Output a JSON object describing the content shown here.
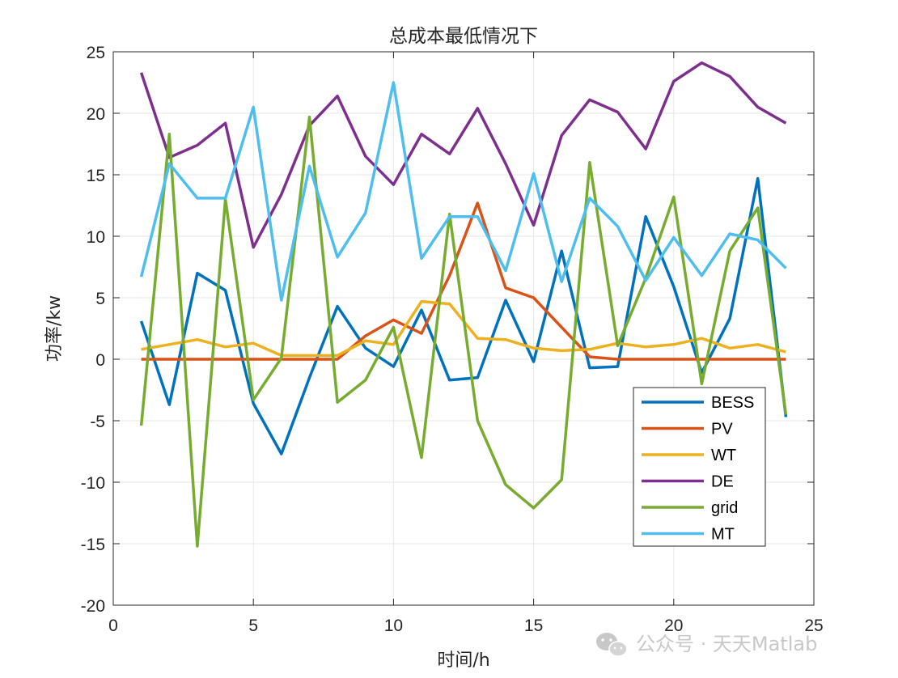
{
  "chart_data": {
    "type": "line",
    "title": "总成本最低情况下",
    "xlabel": "时间/h",
    "ylabel": "功率/kw",
    "xlim": [
      0,
      25
    ],
    "ylim": [
      -20,
      25
    ],
    "xticks": [
      0,
      5,
      10,
      15,
      20,
      25
    ],
    "yticks": [
      -20,
      -15,
      -10,
      -5,
      0,
      5,
      10,
      15,
      20,
      25
    ],
    "grid": true,
    "legend_position": "right-middle",
    "x": [
      1,
      2,
      3,
      4,
      5,
      6,
      7,
      8,
      9,
      10,
      11,
      12,
      13,
      14,
      15,
      16,
      17,
      18,
      19,
      20,
      21,
      22,
      23,
      24
    ],
    "series": [
      {
        "name": "BESS",
        "color": "#0072BD",
        "values": [
          3.1,
          -3.7,
          7.0,
          5.6,
          -3.6,
          -7.7,
          -1.5,
          4.3,
          0.9,
          -0.6,
          4.0,
          -1.7,
          -1.5,
          4.8,
          -0.2,
          8.8,
          -0.7,
          -0.6,
          11.6,
          5.9,
          -1.1,
          3.3,
          14.7,
          -4.7
        ]
      },
      {
        "name": "PV",
        "color": "#D95319",
        "values": [
          0,
          0,
          0,
          0,
          0,
          0,
          0,
          0,
          1.9,
          3.2,
          2.1,
          6.8,
          12.7,
          5.8,
          5.0,
          2.6,
          0.2,
          0,
          0,
          0,
          0,
          0,
          0,
          0
        ]
      },
      {
        "name": "WT",
        "color": "#EDB120",
        "values": [
          0.8,
          1.2,
          1.6,
          1.0,
          1.3,
          0.3,
          0.3,
          0.3,
          1.5,
          1.2,
          4.7,
          4.5,
          1.7,
          1.6,
          0.9,
          0.7,
          0.8,
          1.3,
          1.0,
          1.2,
          1.7,
          0.9,
          1.2,
          0.6
        ]
      },
      {
        "name": "DE",
        "color": "#7E2F8E",
        "values": [
          23.3,
          16.4,
          17.4,
          19.2,
          9.1,
          13.4,
          19.0,
          21.4,
          16.5,
          14.2,
          18.3,
          16.7,
          20.4,
          15.9,
          10.9,
          18.2,
          21.1,
          20.1,
          17.1,
          22.6,
          24.1,
          23.0,
          20.5,
          19.2
        ]
      },
      {
        "name": "grid",
        "color": "#77AC30",
        "values": [
          -5.4,
          18.3,
          -15.2,
          13.0,
          -3.3,
          0.1,
          19.7,
          -3.5,
          -1.7,
          2.6,
          -8.0,
          11.8,
          -5.0,
          -10.2,
          -12.1,
          -9.8,
          16.0,
          1.1,
          6.6,
          13.2,
          -2.0,
          8.8,
          12.3,
          -4.5
        ]
      },
      {
        "name": "MT",
        "color": "#4DBEEE",
        "values": [
          6.7,
          15.9,
          13.1,
          13.1,
          20.5,
          4.8,
          15.7,
          8.3,
          11.9,
          22.5,
          8.2,
          11.6,
          11.6,
          7.2,
          15.1,
          6.3,
          13.1,
          10.8,
          6.4,
          9.9,
          6.8,
          10.2,
          9.7,
          7.4
        ]
      }
    ]
  },
  "watermark": {
    "icon": "wechat-icon",
    "text": "公众号 · 天天Matlab"
  }
}
